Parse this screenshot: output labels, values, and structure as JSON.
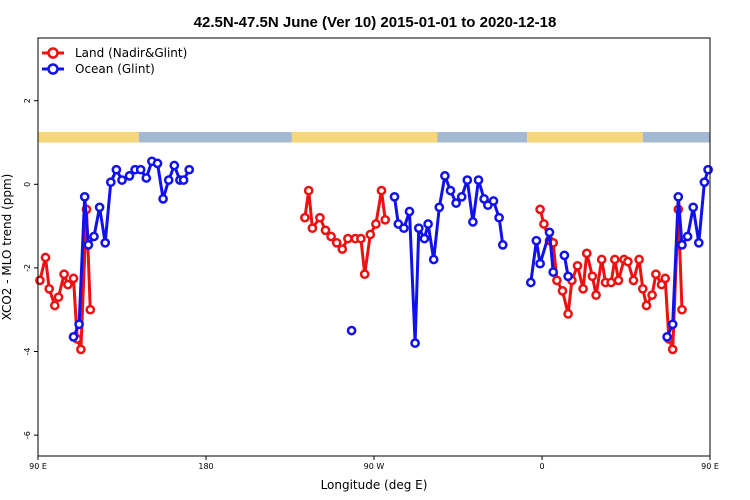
{
  "chart_data": {
    "type": "line",
    "title": "42.5N-47.5N June (Ver 10)   2015-01-01 to 2020-12-18",
    "xlabel": "Longitude (deg E)",
    "ylabel": "XCO2 - MLO trend (ppm)",
    "xlim": [
      90,
      450
    ],
    "ylim": [
      -6.5,
      3.5
    ],
    "x_ticks": [
      {
        "value": 90,
        "label": "90 E"
      },
      {
        "value": 180,
        "label": "180"
      },
      {
        "value": 270,
        "label": "90 W"
      },
      {
        "value": 360,
        "label": "0"
      },
      {
        "value": 450,
        "label": "90 E"
      },
      {
        "value": 540,
        "label": "180"
      }
    ],
    "y_ticks": [
      {
        "value": -6,
        "label": "-6"
      },
      {
        "value": -4,
        "label": "-4"
      },
      {
        "value": -2,
        "label": "-2"
      },
      {
        "value": 0,
        "label": "0"
      },
      {
        "value": 2,
        "label": "2"
      }
    ],
    "grid": false,
    "legend_position": "top-left",
    "surface_bar": {
      "y_top": 1.25,
      "y_bottom": 1.0,
      "land_color": "#f5d77a",
      "ocean_color": "#a3b8d3",
      "segments": [
        {
          "from": 90,
          "to": 144,
          "surface": "land"
        },
        {
          "from": 144,
          "to": 226,
          "surface": "ocean"
        },
        {
          "from": 226,
          "to": 304,
          "surface": "land"
        },
        {
          "from": 304,
          "to": 352,
          "surface": "ocean"
        },
        {
          "from": 352,
          "to": 414,
          "surface": "land"
        },
        {
          "from": 414,
          "to": 450,
          "surface": "ocean"
        }
      ]
    },
    "series": [
      {
        "name": "Land (Nadir&Glint)",
        "color": "#ee1111",
        "segments": [
          [
            [
              91,
              -2.3
            ],
            [
              94,
              -1.75
            ],
            [
              96,
              -2.5
            ],
            [
              99,
              -2.9
            ],
            [
              101,
              -2.7
            ],
            [
              104,
              -2.15
            ],
            [
              106,
              -2.4
            ],
            [
              109,
              -2.25
            ],
            [
              111,
              -3.7
            ],
            [
              113,
              -3.95
            ],
            [
              116,
              -0.6
            ],
            [
              118,
              -3.0
            ]
          ],
          [
            [
              233,
              -0.8
            ],
            [
              235,
              -0.15
            ],
            [
              237,
              -1.05
            ],
            [
              241,
              -0.8
            ],
            [
              244,
              -1.1
            ],
            [
              247,
              -1.25
            ],
            [
              250,
              -1.4
            ],
            [
              253,
              -1.55
            ],
            [
              256,
              -1.3
            ],
            [
              260,
              -1.3
            ],
            [
              263,
              -1.3
            ],
            [
              265,
              -2.15
            ],
            [
              268,
              -1.2
            ],
            [
              271,
              -0.95
            ],
            [
              274,
              -0.15
            ],
            [
              276,
              -0.85
            ]
          ],
          [
            [
              359,
              -0.6
            ],
            [
              361,
              -0.95
            ],
            [
              364,
              -1.35
            ],
            [
              366,
              -1.4
            ],
            [
              368,
              -2.3
            ],
            [
              371,
              -2.55
            ],
            [
              374,
              -3.1
            ],
            [
              376,
              -2.3
            ],
            [
              379,
              -1.95
            ],
            [
              382,
              -2.5
            ],
            [
              384,
              -1.65
            ],
            [
              387,
              -2.2
            ],
            [
              389,
              -2.65
            ],
            [
              392,
              -1.8
            ],
            [
              394,
              -2.35
            ],
            [
              397,
              -2.35
            ],
            [
              399,
              -1.8
            ],
            [
              401,
              -2.3
            ],
            [
              404,
              -1.8
            ],
            [
              406,
              -1.85
            ],
            [
              409,
              -2.3
            ],
            [
              412,
              -1.8
            ],
            [
              414,
              -2.5
            ],
            [
              416,
              -2.9
            ],
            [
              419,
              -2.65
            ],
            [
              421,
              -2.15
            ],
            [
              424,
              -2.4
            ],
            [
              426,
              -2.25
            ],
            [
              428,
              -3.7
            ],
            [
              430,
              -3.95
            ],
            [
              433,
              -0.6
            ],
            [
              435,
              -3.0
            ]
          ]
        ]
      },
      {
        "name": "Ocean (Glint)",
        "color": "#1111ee",
        "segments": [
          [
            [
              109,
              -3.65
            ],
            [
              112,
              -3.35
            ],
            [
              115,
              -0.3
            ],
            [
              117,
              -1.45
            ],
            [
              120,
              -1.25
            ],
            [
              123,
              -0.55
            ],
            [
              126,
              -1.4
            ],
            [
              129,
              0.05
            ],
            [
              132,
              0.35
            ],
            [
              135,
              0.1
            ],
            [
              139,
              0.2
            ],
            [
              142,
              0.35
            ],
            [
              145,
              0.35
            ],
            [
              148,
              0.15
            ],
            [
              151,
              0.55
            ],
            [
              154,
              0.5
            ],
            [
              157,
              -0.35
            ],
            [
              160,
              0.1
            ],
            [
              163,
              0.45
            ],
            [
              166,
              0.1
            ],
            [
              168,
              0.1
            ],
            [
              171,
              0.35
            ]
          ],
          [
            [
              258,
              -3.5
            ]
          ],
          [
            [
              281,
              -0.3
            ],
            [
              283,
              -0.95
            ],
            [
              286,
              -1.05
            ],
            [
              289,
              -0.65
            ],
            [
              292,
              -3.8
            ],
            [
              294,
              -1.05
            ],
            [
              297,
              -1.3
            ],
            [
              299,
              -0.95
            ],
            [
              302,
              -1.8
            ],
            [
              305,
              -0.55
            ],
            [
              308,
              0.2
            ],
            [
              311,
              -0.15
            ],
            [
              314,
              -0.45
            ],
            [
              317,
              -0.3
            ],
            [
              320,
              0.1
            ],
            [
              323,
              -0.9
            ],
            [
              326,
              0.1
            ],
            [
              329,
              -0.35
            ],
            [
              331,
              -0.5
            ],
            [
              334,
              -0.4
            ],
            [
              337,
              -0.8
            ],
            [
              339,
              -1.45
            ]
          ],
          [
            [
              354,
              -2.35
            ],
            [
              357,
              -1.35
            ],
            [
              359,
              -1.9
            ],
            [
              364,
              -1.15
            ],
            [
              366,
              -2.1
            ]
          ],
          [
            [
              372,
              -1.7
            ],
            [
              374,
              -2.2
            ]
          ],
          [
            [
              427,
              -3.65
            ],
            [
              430,
              -3.35
            ],
            [
              433,
              -0.3
            ],
            [
              435,
              -1.45
            ],
            [
              438,
              -1.25
            ],
            [
              441,
              -0.55
            ],
            [
              444,
              -1.4
            ],
            [
              447,
              0.05
            ],
            [
              449,
              0.35
            ],
            [
              451,
              0.1
            ]
          ]
        ]
      }
    ]
  }
}
